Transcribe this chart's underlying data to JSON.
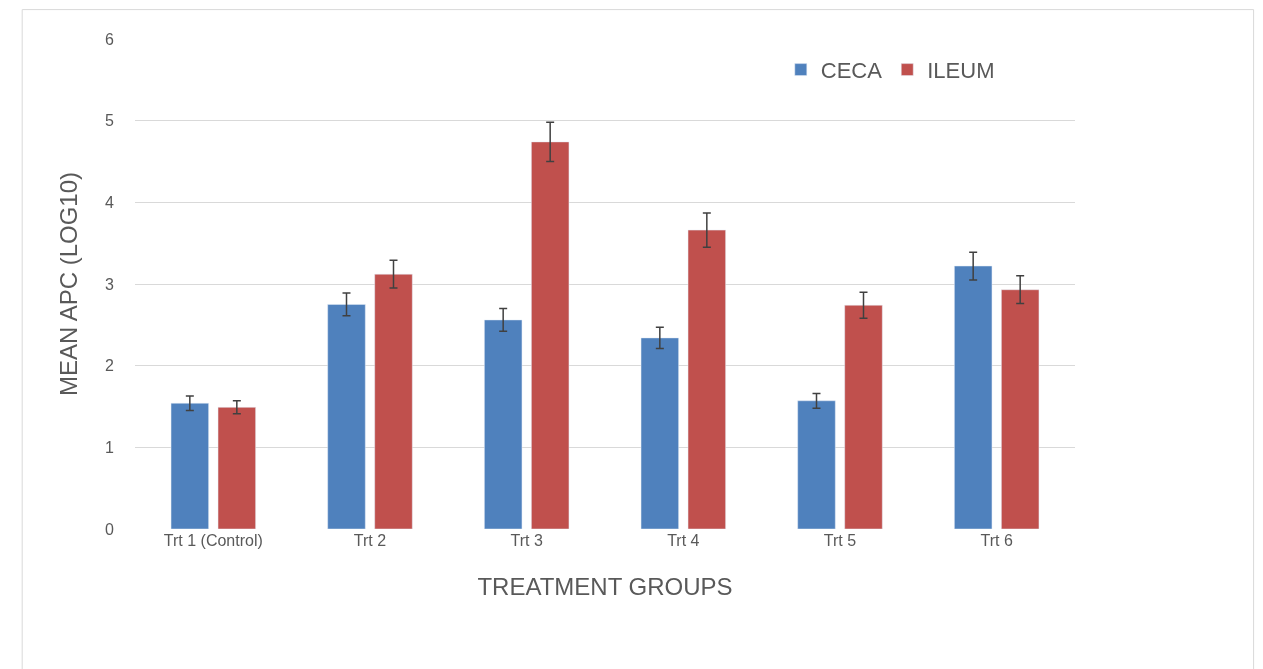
{
  "chart_data": {
    "type": "bar",
    "xlabel": "TREATMENT GROUPS",
    "ylabel": "MEAN APC (LOG10)",
    "categories": [
      "Trt 1 (Control)",
      "Trt 2",
      "Trt 3",
      "Trt 4",
      "Trt 5",
      "Trt 6"
    ],
    "series": [
      {
        "name": "CECA",
        "color": "#4f81bd",
        "values": [
          1.54,
          2.75,
          2.56,
          2.34,
          1.57,
          3.22
        ],
        "errors": [
          0.09,
          0.14,
          0.14,
          0.13,
          0.09,
          0.17
        ]
      },
      {
        "name": "ILEUM",
        "color": "#c0504d",
        "values": [
          1.49,
          3.12,
          4.74,
          3.66,
          2.74,
          2.93
        ],
        "errors": [
          0.08,
          0.17,
          0.24,
          0.21,
          0.16,
          0.17
        ]
      }
    ],
    "ylim": [
      0,
      6
    ],
    "yticks": [
      0,
      1,
      2,
      3,
      4,
      5,
      6
    ],
    "grid": "y",
    "legend": "top right"
  }
}
